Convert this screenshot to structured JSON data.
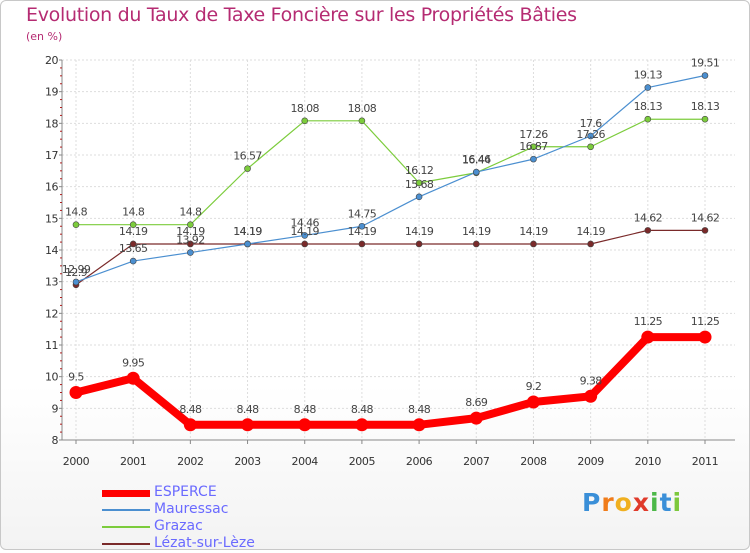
{
  "chart_data": {
    "type": "line",
    "title": "Evolution du Taux de Taxe Foncière sur les Propriétés Bâties",
    "ylabel": "(en %)",
    "xlabel": "",
    "categories": [
      "2000",
      "2001",
      "2002",
      "2003",
      "2004",
      "2005",
      "2006",
      "2007",
      "2008",
      "2009",
      "2010",
      "2011"
    ],
    "ylim": [
      8,
      20
    ],
    "yticks": [
      "8",
      "9",
      "10",
      "11",
      "12",
      "13",
      "14",
      "15",
      "16",
      "17",
      "18",
      "19",
      "20"
    ],
    "series": [
      {
        "name": "ESPERCE",
        "color": "#ff0000",
        "values": [
          9.5,
          9.95,
          8.48,
          8.48,
          8.48,
          8.48,
          8.48,
          8.69,
          9.2,
          9.38,
          11.25,
          11.25
        ],
        "labels": [
          "9.5",
          "9.95",
          "8.48",
          "8.48",
          "8.48",
          "8.48",
          "8.48",
          "8.69",
          "9.2",
          "9.38",
          "11.25",
          "11.25"
        ]
      },
      {
        "name": "Mauressac",
        "color": "#4b8fd0",
        "values": [
          12.99,
          13.65,
          13.92,
          14.19,
          14.46,
          14.75,
          15.68,
          16.46,
          16.87,
          17.6,
          19.13,
          19.51
        ],
        "labels": [
          "12.99",
          "13.65",
          "13.92",
          "14.19",
          "14.46",
          "14.75",
          "15.68",
          "16.46",
          "16.87",
          "17.6",
          "19.13",
          "19.51"
        ]
      },
      {
        "name": "Grazac",
        "color": "#7ccc3c",
        "values": [
          14.8,
          14.8,
          14.8,
          16.57,
          18.08,
          18.08,
          16.12,
          16.44,
          17.26,
          17.26,
          18.13,
          18.13
        ],
        "labels": [
          "14.8",
          "14.8",
          "14.8",
          "16.57",
          "18.08",
          "18.08",
          "16.12",
          "16.44",
          "17.26",
          "17.26",
          "18.13",
          "18.13"
        ]
      },
      {
        "name": "Lézat-sur-Lèze",
        "color": "#7a2a2a",
        "values": [
          12.9,
          14.19,
          14.19,
          14.19,
          14.19,
          14.19,
          14.19,
          14.19,
          14.19,
          14.19,
          14.62,
          14.62
        ],
        "labels": [
          "12.9",
          "14.19",
          "14.19",
          "14.19",
          "14.19",
          "14.19",
          "14.19",
          "14.19",
          "14.19",
          "14.19",
          "14.62",
          "14.62"
        ]
      }
    ]
  },
  "legend": {
    "items": [
      {
        "label": "ESPERCE",
        "color": "#ff0000"
      },
      {
        "label": "Mauressac",
        "color": "#4b8fd0"
      },
      {
        "label": "Grazac",
        "color": "#7ccc3c"
      },
      {
        "label": "Lézat-sur-Lèze",
        "color": "#7a2a2a"
      }
    ]
  },
  "logo": {
    "text": "Proxiti",
    "letters": [
      "P",
      "r",
      "o",
      "x",
      "i",
      "t",
      "i"
    ],
    "colors": [
      "#3a8fd8",
      "#f07c1a",
      "#f0b020",
      "#e03a2a",
      "#4cb848",
      "#3a8fd8",
      "#7cc83c"
    ]
  }
}
